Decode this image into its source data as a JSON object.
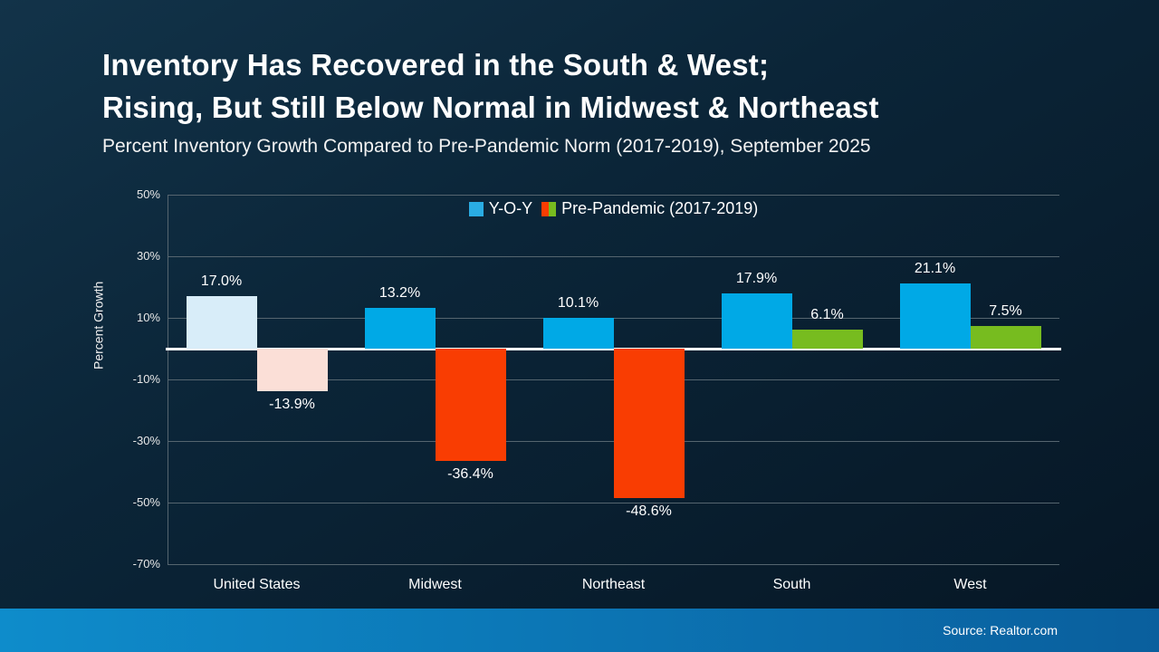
{
  "slide": {
    "title_line1": "Inventory Has Recovered in the South & West;",
    "title_line2": "Rising, But Still Below Normal in Midwest & Northeast",
    "subtitle": "Percent Inventory Growth Compared to Pre-Pandemic Norm (2017-2019), September 2025",
    "source": "Source: Realtor.com"
  },
  "chart_data": {
    "type": "bar",
    "title": "Inventory Has Recovered in the South & West; Rising, But Still Below Normal in Midwest & Northeast",
    "subtitle": "Percent Inventory Growth Compared to Pre-Pandemic Norm (2017-2019), September 2025",
    "xlabel": "",
    "ylabel": "Percent Growth",
    "ylim": [
      -70,
      50
    ],
    "yticks": [
      50,
      30,
      10,
      -10,
      -30,
      -50,
      -70
    ],
    "ytick_labels": [
      "50%",
      "30%",
      "10%",
      "-10%",
      "-30%",
      "-50%",
      "-70%"
    ],
    "grid": true,
    "legend_position": "top-center",
    "categories": [
      "United States",
      "Midwest",
      "Northeast",
      "South",
      "West"
    ],
    "series": [
      {
        "name": "Y-O-Y",
        "values": [
          17.0,
          13.2,
          10.1,
          17.9,
          21.1
        ],
        "labels": [
          "17.0%",
          "13.2%",
          "10.1%",
          "17.9%",
          "21.1%"
        ],
        "colors": [
          "#d8edf9",
          "#00a9e6",
          "#00a9e6",
          "#00a9e6",
          "#00a9e6"
        ]
      },
      {
        "name": "Pre-Pandemic (2017-2019)",
        "values": [
          -13.9,
          -36.4,
          -48.6,
          6.1,
          7.5
        ],
        "labels": [
          "-13.9%",
          "-36.4%",
          "-48.6%",
          "6.1%",
          "7.5%"
        ],
        "colors": [
          "#fbdfd7",
          "#f93d02",
          "#f93d02",
          "#77bc1f",
          "#77bc1f"
        ]
      }
    ],
    "legend": [
      {
        "label": "Y-O-Y",
        "colors": [
          "#2aace3"
        ]
      },
      {
        "label": "Pre-Pandemic (2017-2019)",
        "colors": [
          "#f93d02",
          "#77bc1f"
        ]
      }
    ],
    "zero_line_color": "#ffffff",
    "gridline_color": "#55656f",
    "background_color": "#0b2538",
    "footer_color": "#0c7ebd"
  }
}
